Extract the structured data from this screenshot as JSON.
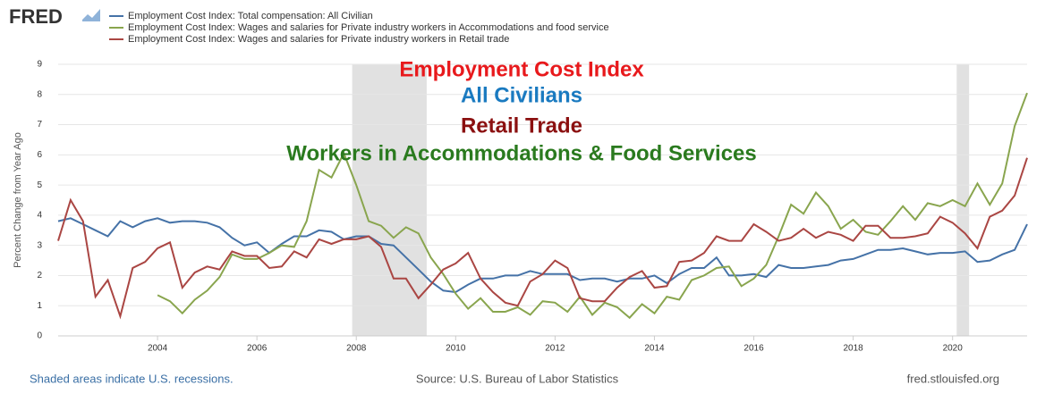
{
  "logo": "FRED",
  "footer": {
    "left": "Shaded areas indicate U.S. recessions.",
    "center": "Source: U.S. Bureau of Labor Statistics",
    "right": "fred.stlouisfed.org"
  },
  "chart_data": {
    "type": "line",
    "annotations": [
      {
        "text": "Employment Cost Index",
        "color": "#e8191c"
      },
      {
        "text": "All Civilians",
        "color": "#1a7ac0"
      },
      {
        "text": "Retail Trade",
        "color": "#8b1010"
      },
      {
        "text": "Workers in Accommodations & Food Services",
        "color": "#2a7a1e"
      }
    ],
    "ylabel": "Percent Change from Year Ago",
    "x": [
      2002,
      2002.25,
      2002.5,
      2002.75,
      2003,
      2003.25,
      2003.5,
      2003.75,
      2004,
      2004.25,
      2004.5,
      2004.75,
      2005,
      2005.25,
      2005.5,
      2005.75,
      2006,
      2006.25,
      2006.5,
      2006.75,
      2007,
      2007.25,
      2007.5,
      2007.75,
      2008,
      2008.25,
      2008.5,
      2008.75,
      2009,
      2009.25,
      2009.5,
      2009.75,
      2010,
      2010.25,
      2010.5,
      2010.75,
      2011,
      2011.25,
      2011.5,
      2011.75,
      2012,
      2012.25,
      2012.5,
      2012.75,
      2013,
      2013.25,
      2013.5,
      2013.75,
      2014,
      2014.25,
      2014.5,
      2014.75,
      2015,
      2015.25,
      2015.5,
      2015.75,
      2016,
      2016.25,
      2016.5,
      2016.75,
      2017,
      2017.25,
      2017.5,
      2017.75,
      2018,
      2018.25,
      2018.5,
      2018.75,
      2019,
      2019.25,
      2019.5,
      2019.75,
      2020,
      2020.25,
      2020.5,
      2020.75,
      2021,
      2021.25,
      2021.5
    ],
    "series": [
      {
        "name": "Employment Cost Index: Total compensation: All Civilian",
        "color": "#4572a7",
        "values": [
          3.8,
          3.9,
          3.7,
          3.5,
          3.3,
          3.8,
          3.6,
          3.8,
          3.9,
          3.75,
          3.8,
          3.8,
          3.75,
          3.6,
          3.25,
          3.0,
          3.1,
          2.75,
          3.05,
          3.3,
          3.3,
          3.5,
          3.45,
          3.2,
          3.3,
          3.3,
          3.05,
          3.0,
          2.6,
          2.2,
          1.8,
          1.5,
          1.45,
          1.7,
          1.9,
          1.9,
          2.0,
          2.0,
          2.15,
          2.05,
          2.05,
          2.05,
          1.85,
          1.9,
          1.9,
          1.8,
          1.9,
          1.9,
          2.0,
          1.75,
          2.05,
          2.25,
          2.25,
          2.6,
          2.0,
          2.0,
          2.05,
          1.95,
          2.35,
          2.25,
          2.25,
          2.3,
          2.35,
          2.5,
          2.55,
          2.7,
          2.85,
          2.85,
          2.9,
          2.8,
          2.7,
          2.75,
          2.75,
          2.8,
          2.45,
          2.5,
          2.7,
          2.85,
          3.7
        ]
      },
      {
        "name": "Employment Cost Index: Wages and salaries for Private industry workers in Accommodations and food service",
        "color": "#89a54e",
        "values": [
          null,
          null,
          null,
          null,
          null,
          null,
          null,
          null,
          1.35,
          1.15,
          0.75,
          1.2,
          1.5,
          1.95,
          2.7,
          2.55,
          2.55,
          2.75,
          3.0,
          2.95,
          3.8,
          5.5,
          5.25,
          6.05,
          5.0,
          3.8,
          3.65,
          3.25,
          3.6,
          3.4,
          2.6,
          2.05,
          1.4,
          0.9,
          1.25,
          0.8,
          0.8,
          0.95,
          0.7,
          1.15,
          1.1,
          0.8,
          1.3,
          0.7,
          1.1,
          0.95,
          0.6,
          1.05,
          0.75,
          1.3,
          1.2,
          1.85,
          2.0,
          2.25,
          2.3,
          1.65,
          1.9,
          2.35,
          3.3,
          4.35,
          4.05,
          4.75,
          4.3,
          3.55,
          3.85,
          3.45,
          3.35,
          3.8,
          4.3,
          3.85,
          4.4,
          4.3,
          4.5,
          4.3,
          5.05,
          4.35,
          5.05,
          6.95,
          8.05
        ]
      },
      {
        "name": "Employment Cost Index: Wages and salaries for Private industry workers in Retail trade",
        "color": "#aa4643",
        "values": [
          3.15,
          4.5,
          3.8,
          1.3,
          1.85,
          0.65,
          2.25,
          2.45,
          2.9,
          3.1,
          1.6,
          2.1,
          2.3,
          2.2,
          2.8,
          2.65,
          2.65,
          2.25,
          2.3,
          2.8,
          2.6,
          3.2,
          3.05,
          3.2,
          3.2,
          3.3,
          2.95,
          1.9,
          1.9,
          1.25,
          1.7,
          2.2,
          2.4,
          2.75,
          1.9,
          1.45,
          1.1,
          1.0,
          1.8,
          2.05,
          2.5,
          2.25,
          1.25,
          1.15,
          1.15,
          1.6,
          1.95,
          2.15,
          1.6,
          1.65,
          2.45,
          2.5,
          2.75,
          3.3,
          3.15,
          3.15,
          3.7,
          3.45,
          3.15,
          3.25,
          3.55,
          3.25,
          3.45,
          3.35,
          3.15,
          3.65,
          3.65,
          3.25,
          3.25,
          3.3,
          3.4,
          3.95,
          3.75,
          3.4,
          2.9,
          3.95,
          4.15,
          4.65,
          5.9
        ]
      }
    ],
    "recessions": [
      [
        2007.917,
        2009.417
      ],
      [
        2020.083,
        2020.333
      ]
    ],
    "recession_color": "#e1e1e1",
    "xlim": [
      2002,
      2021.5
    ],
    "xticks": [
      2004,
      2006,
      2008,
      2010,
      2012,
      2014,
      2016,
      2018,
      2020
    ],
    "ylim": [
      0,
      9
    ],
    "yticks": [
      0,
      1,
      2,
      3,
      4,
      5,
      6,
      7,
      8,
      9
    ],
    "grid": true
  }
}
